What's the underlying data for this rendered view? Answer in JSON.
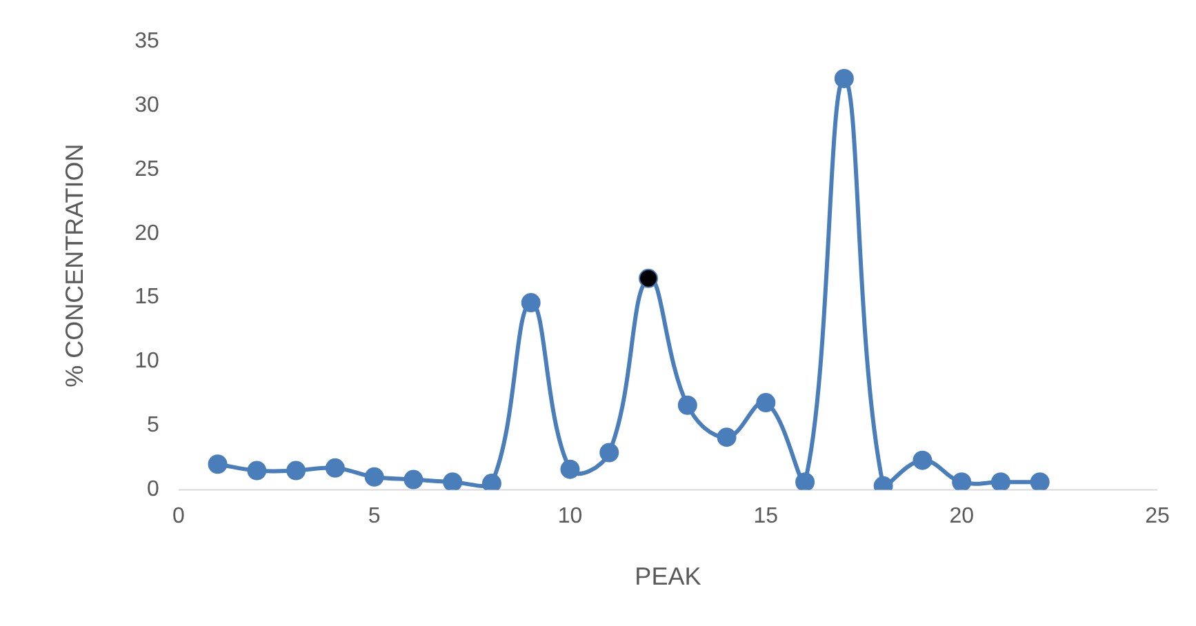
{
  "chart_data": {
    "type": "line",
    "xlabel": "PEAK",
    "ylabel": "% CONCENTRATION",
    "x": [
      1,
      2,
      3,
      4,
      5,
      6,
      7,
      8,
      9,
      10,
      11,
      12,
      13,
      14,
      15,
      16,
      17,
      18,
      19,
      20,
      21,
      22
    ],
    "series": [
      {
        "color": "#4a7ebb",
        "colors": [
          "#4a7ebb",
          "#4a7ebb",
          "#4a7ebb",
          "#4a7ebb",
          "#4a7ebb",
          "#4a7ebb",
          "#4a7ebb",
          "#4a7ebb",
          "#4a7ebb",
          "#4a7ebb",
          "#4a7ebb",
          "#000000",
          "#4a7ebb",
          "#4a7ebb",
          "#4a7ebb",
          "#4a7ebb",
          "#4a7ebb",
          "#4a7ebb",
          "#4a7ebb",
          "#4a7ebb",
          "#4a7ebb",
          "#4a7ebb"
        ],
        "values": [
          2.0,
          1.5,
          1.5,
          1.7,
          1.0,
          0.8,
          0.6,
          0.5,
          14.6,
          1.6,
          2.9,
          16.5,
          6.6,
          4.1,
          6.8,
          0.6,
          32.1,
          0.3,
          2.3,
          0.6,
          0.6,
          0.6
        ]
      }
    ],
    "xlim": [
      0,
      25
    ],
    "xticks": [
      0,
      5,
      10,
      15,
      20,
      25
    ],
    "ylim": [
      0,
      35
    ],
    "yticks": [
      0,
      5,
      10,
      15,
      20,
      25,
      30,
      35
    ],
    "grid": false,
    "legend": false,
    "marker": "circle",
    "line_style": "solid"
  }
}
